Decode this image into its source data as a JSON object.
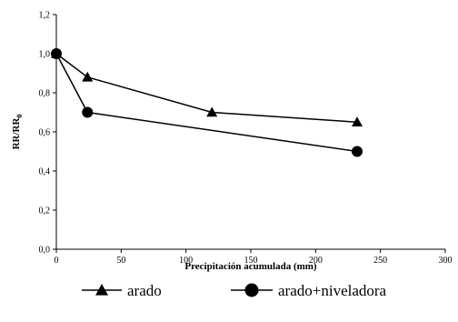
{
  "chart_data": {
    "type": "line",
    "title": "",
    "xlabel": "Precipitación acumulada (mm)",
    "ylabel_main": "RR/RR",
    "ylabel_sub": "0",
    "xlim": [
      0,
      300
    ],
    "ylim": [
      0,
      1.2
    ],
    "x_ticks": [
      0,
      50,
      100,
      150,
      200,
      250,
      300
    ],
    "y_ticks": [
      0.0,
      0.2,
      0.4,
      0.6,
      0.8,
      1.0,
      1.2
    ],
    "y_tick_labels": [
      "0,0",
      "0,2",
      "0,4",
      "0,6",
      "0,8",
      "1,0",
      "1,2"
    ],
    "grid": false,
    "legend_position": "bottom",
    "series": [
      {
        "name": "arado",
        "marker": "triangle",
        "color": "#000000",
        "x": [
          0,
          24,
          120,
          232
        ],
        "y": [
          1.0,
          0.88,
          0.7,
          0.65
        ]
      },
      {
        "name": "arado+niveladora",
        "marker": "circle",
        "color": "#000000",
        "x": [
          0,
          24,
          232
        ],
        "y": [
          1.0,
          0.7,
          0.5
        ]
      }
    ]
  }
}
